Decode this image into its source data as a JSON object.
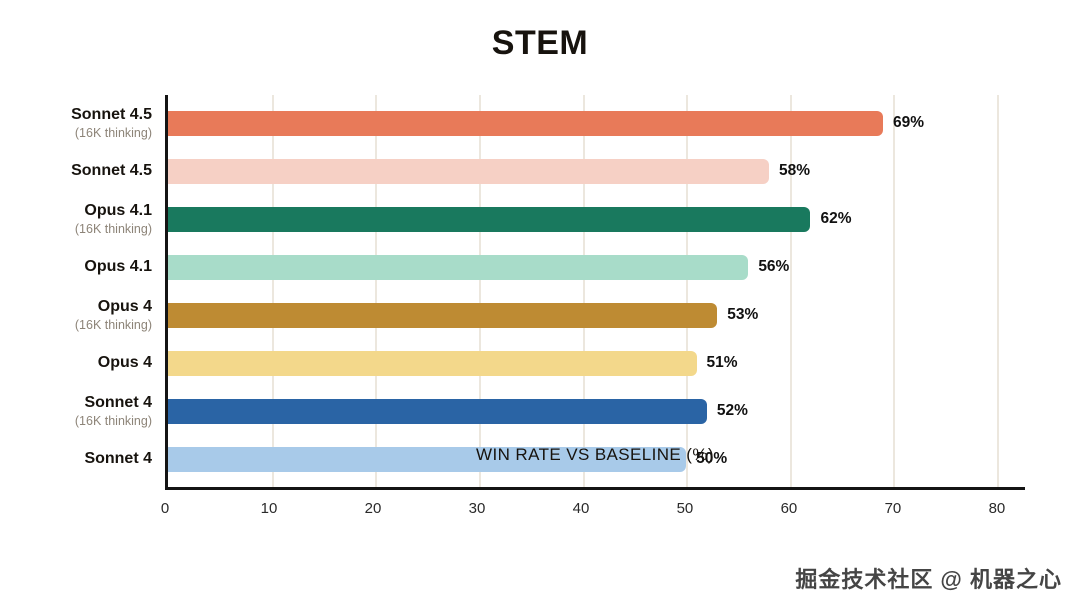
{
  "chart_data": {
    "type": "bar",
    "orientation": "horizontal",
    "title": "STEM",
    "xlabel": "WIN RATE VS BASELINE (%)",
    "xlim": [
      0,
      80
    ],
    "xticks": [
      0,
      10,
      20,
      30,
      40,
      50,
      60,
      70,
      80
    ],
    "grid": true,
    "legend": false,
    "bars": [
      {
        "label": "Sonnet 4.5",
        "sublabel": "(16K thinking)",
        "value": 69,
        "value_label": "69%",
        "color": "#E87A59"
      },
      {
        "label": "Sonnet 4.5",
        "sublabel": "",
        "value": 58,
        "value_label": "58%",
        "color": "#F6D0C5"
      },
      {
        "label": "Opus 4.1",
        "sublabel": "(16K thinking)",
        "value": 62,
        "value_label": "62%",
        "color": "#19795E"
      },
      {
        "label": "Opus 4.1",
        "sublabel": "",
        "value": 56,
        "value_label": "56%",
        "color": "#A8DCC9"
      },
      {
        "label": "Opus 4",
        "sublabel": "(16K thinking)",
        "value": 53,
        "value_label": "53%",
        "color": "#BE8B33"
      },
      {
        "label": "Opus 4",
        "sublabel": "",
        "value": 51,
        "value_label": "51%",
        "color": "#F3D88B"
      },
      {
        "label": "Sonnet 4",
        "sublabel": "(16K thinking)",
        "value": 52,
        "value_label": "52%",
        "color": "#2A64A5"
      },
      {
        "label": "Sonnet 4",
        "sublabel": "",
        "value": 50,
        "value_label": "50%",
        "color": "#A8CAE9"
      }
    ]
  },
  "watermark": {
    "text": "掘金技术社区 @ 机器之心"
  },
  "colors": {
    "grid": "#ECE7DE",
    "axis": "#141414",
    "value_text": "#111111",
    "sublabel_text": "#8D8478"
  }
}
